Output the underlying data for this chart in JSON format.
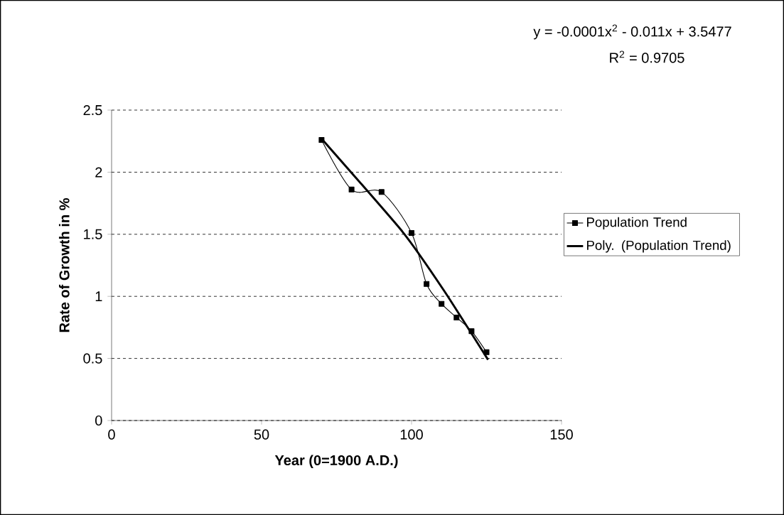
{
  "chart_data": {
    "type": "line",
    "xlabel": "Year   (0=1900 A.D.)",
    "ylabel": "Rate of Growth in %",
    "annotations": [
      "y = -0.0001x$^{2}$ - 0.011x + 3.5477",
      "R$^{2}$ = 0.9705"
    ],
    "xlim": [
      0,
      150
    ],
    "ylim": [
      0,
      2.5
    ],
    "xticks": [
      0,
      50,
      100,
      150
    ],
    "yticks": [
      0,
      0.5,
      1,
      1.5,
      2,
      2.5
    ],
    "grid": "y",
    "legend": "right",
    "series": [
      {
        "name": "Population Trend",
        "color": "#000000",
        "marker": "square",
        "x": [
          70,
          80,
          90,
          100,
          105,
          110,
          115,
          120,
          125
        ],
        "values": [
          2.26,
          1.86,
          1.84,
          1.51,
          1.1,
          0.94,
          0.83,
          0.72,
          0.55
        ]
      },
      {
        "name": "Poly. (Population Trend)",
        "color": "#000000",
        "marker": "none",
        "x": [
          70,
          97,
          111,
          125.5
        ],
        "values": [
          2.27,
          1.52,
          1.04,
          0.49
        ]
      }
    ]
  }
}
